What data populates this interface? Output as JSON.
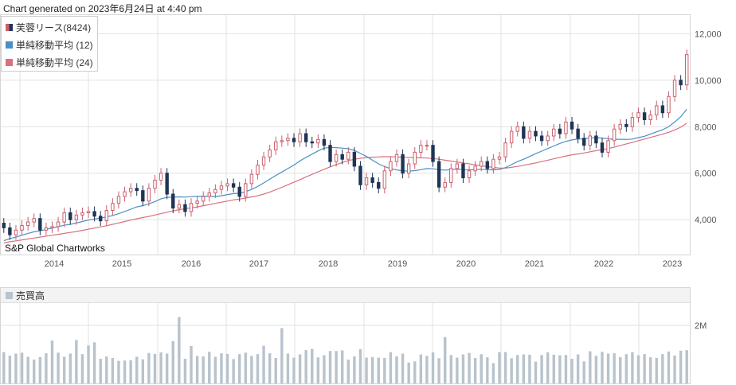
{
  "header": {
    "generated_text": "Chart generated on 2023年6月24日 at 4:40 pm"
  },
  "watermark": "S&P Global Chartworks",
  "legend": [
    {
      "label": "芙蓉リース(8424)",
      "color": "#c9606e",
      "icon": "candle-swatch-icon"
    },
    {
      "label": "単純移動平均 (12)",
      "color": "#4a90c2",
      "icon": "sma12-swatch-icon"
    },
    {
      "label": "単純移動平均 (24)",
      "color": "#d9707e",
      "icon": "sma24-swatch-icon"
    }
  ],
  "volume_panel": {
    "label": "売買高",
    "color": "#b8c3cc"
  },
  "colors": {
    "up": "#c9606e",
    "down": "#1f3556",
    "sma12": "#4a90c2",
    "sma24": "#d9707e",
    "volume": "#b8c3cc",
    "grid": "#e2e2e2"
  },
  "chart_data": [
    {
      "type": "candlestick",
      "title": "",
      "ylim": [
        2500,
        12800
      ],
      "y_ticks": [
        "12,000",
        "10,000",
        "8,000",
        "6,000",
        "4,000"
      ],
      "y_tick_values": [
        12000,
        10000,
        8000,
        6000,
        4000
      ],
      "x_ticks": [
        "2014",
        "2015",
        "2016",
        "2017",
        "2018",
        "2019",
        "2020",
        "2021",
        "2022",
        "2023"
      ],
      "grid": true,
      "legend_position": "top-left",
      "close": [
        3650,
        3350,
        3550,
        3750,
        3900,
        4050,
        3550,
        3650,
        3700,
        3900,
        4300,
        4000,
        4200,
        4300,
        4350,
        4150,
        3950,
        4400,
        4700,
        5000,
        5200,
        5350,
        5250,
        4800,
        5350,
        5700,
        6000,
        5100,
        4500,
        4650,
        4350,
        4700,
        4800,
        5000,
        5150,
        5300,
        5450,
        5550,
        5400,
        5000,
        5550,
        5950,
        6350,
        6700,
        7000,
        7350,
        7400,
        7500,
        7350,
        7700,
        7350,
        7300,
        7450,
        7200,
        6500,
        6800,
        6600,
        6900,
        6300,
        5500,
        5800,
        5600,
        5350,
        6100,
        6500,
        6800,
        6000,
        6400,
        6900,
        7200,
        7200,
        6500,
        5400,
        5600,
        6200,
        6400,
        5800,
        6100,
        6300,
        6500,
        6200,
        6600,
        6700,
        7300,
        7800,
        8000,
        7500,
        7800,
        7600,
        7400,
        7600,
        7900,
        7700,
        8200,
        7900,
        7500,
        7200,
        7600,
        7300,
        6900,
        7400,
        7900,
        8100,
        8000,
        8400,
        8600,
        8300,
        8500,
        8900,
        8600,
        9300,
        10000,
        9800,
        11100
      ],
      "sma12": [
        3100,
        3180,
        3250,
        3330,
        3410,
        3480,
        3520,
        3580,
        3640,
        3700,
        3760,
        3800,
        3860,
        3920,
        3980,
        4030,
        4070,
        4120,
        4180,
        4260,
        4350,
        4450,
        4550,
        4600,
        4680,
        4780,
        4900,
        4960,
        4970,
        4980,
        4970,
        4990,
        5000,
        5010,
        5000,
        5000,
        5030,
        5080,
        5120,
        5140,
        5200,
        5300,
        5430,
        5580,
        5740,
        5900,
        6050,
        6200,
        6350,
        6530,
        6680,
        6820,
        6960,
        7080,
        7110,
        7100,
        7080,
        7050,
        6980,
        6850,
        6720,
        6560,
        6400,
        6280,
        6200,
        6140,
        6100,
        6090,
        6110,
        6150,
        6200,
        6190,
        6150,
        6130,
        6150,
        6180,
        6150,
        6140,
        6160,
        6170,
        6150,
        6140,
        6160,
        6240,
        6370,
        6500,
        6600,
        6720,
        6840,
        6950,
        7060,
        7170,
        7280,
        7370,
        7430,
        7470,
        7480,
        7520,
        7530,
        7510,
        7480,
        7460,
        7460,
        7450,
        7470,
        7530,
        7590,
        7680,
        7780,
        7870,
        8000,
        8200,
        8430,
        8750
      ],
      "sma24": [
        3000,
        3050,
        3090,
        3130,
        3170,
        3210,
        3250,
        3290,
        3330,
        3370,
        3410,
        3450,
        3490,
        3540,
        3590,
        3640,
        3690,
        3740,
        3800,
        3860,
        3920,
        3980,
        4040,
        4090,
        4140,
        4200,
        4260,
        4320,
        4380,
        4430,
        4470,
        4510,
        4550,
        4600,
        4650,
        4700,
        4750,
        4800,
        4850,
        4890,
        4930,
        4980,
        5030,
        5100,
        5190,
        5290,
        5390,
        5500,
        5610,
        5720,
        5840,
        5950,
        6060,
        6170,
        6270,
        6370,
        6460,
        6540,
        6600,
        6640,
        6670,
        6690,
        6700,
        6710,
        6710,
        6700,
        6690,
        6680,
        6670,
        6660,
        6650,
        6630,
        6600,
        6560,
        6520,
        6480,
        6440,
        6400,
        6360,
        6320,
        6280,
        6250,
        6220,
        6220,
        6250,
        6290,
        6340,
        6390,
        6440,
        6500,
        6560,
        6620,
        6680,
        6740,
        6790,
        6830,
        6870,
        6920,
        6970,
        7010,
        7060,
        7120,
        7190,
        7260,
        7330,
        7400,
        7470,
        7540,
        7610,
        7680,
        7760,
        7860,
        7980,
        8150
      ],
      "volume_ylim": [
        0,
        2800000
      ],
      "volume_tick": "2M",
      "volume_tick_value": 2000000,
      "volume": [
        1080000,
        960000,
        1030000,
        1060000,
        920000,
        820000,
        910000,
        1040000,
        1480000,
        1060000,
        920000,
        1030000,
        1500000,
        1010000,
        1310000,
        1420000,
        850000,
        930000,
        880000,
        780000,
        790000,
        800000,
        920000,
        830000,
        1050000,
        1020000,
        1070000,
        1030000,
        1460000,
        2290000,
        850000,
        1290000,
        950000,
        930000,
        1090000,
        920000,
        1040000,
        1020000,
        840000,
        1010000,
        1060000,
        950000,
        1010000,
        1300000,
        1040000,
        880000,
        1910000,
        1030000,
        890000,
        1000000,
        1150000,
        1190000,
        900000,
        970000,
        1120000,
        1120000,
        1140000,
        820000,
        930000,
        1180000,
        890000,
        910000,
        890000,
        880000,
        1080000,
        930000,
        1030000,
        720000,
        760000,
        1000000,
        950000,
        1070000,
        870000,
        1600000,
        980000,
        890000,
        1000000,
        1050000,
        880000,
        1010000,
        900000,
        700000,
        1080000,
        1080000,
        870000,
        980000,
        1000000,
        990000,
        750000,
        980000,
        1070000,
        990000,
        970000,
        980000,
        850000,
        1000000,
        760000,
        1110000,
        950000,
        1090000,
        1030000,
        1040000,
        910000,
        1010000,
        1080000,
        970000,
        1010000,
        900000,
        880000,
        1010000,
        1100000,
        960000,
        1130000,
        1150000
      ]
    }
  ]
}
